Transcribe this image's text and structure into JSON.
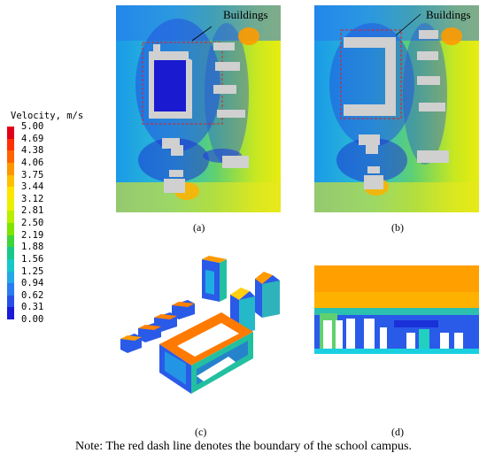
{
  "legend": {
    "title": "Velocity, m/s",
    "ticks": [
      "5.00",
      "4.69",
      "4.38",
      "4.06",
      "3.75",
      "3.44",
      "3.12",
      "2.81",
      "2.50",
      "2.19",
      "1.88",
      "1.56",
      "1.25",
      "0.94",
      "0.62",
      "0.31",
      "0.00"
    ],
    "colors": [
      "#e0001a",
      "#ff3000",
      "#ff6400",
      "#ff9600",
      "#ffc000",
      "#ffe400",
      "#e8f000",
      "#b8ee00",
      "#7ee400",
      "#40d43a",
      "#18c88a",
      "#18c8c8",
      "#24a8e8",
      "#2a7cf0",
      "#2a4ee8",
      "#1a1ad8"
    ]
  },
  "callouts": {
    "a": "Buildings",
    "b": "Buildings"
  },
  "captions": {
    "a": "(a)",
    "b": "(b)",
    "c": "(c)",
    "d": "(d)"
  },
  "note": "Note: The red dash line denotes the boundary of the school campus."
}
